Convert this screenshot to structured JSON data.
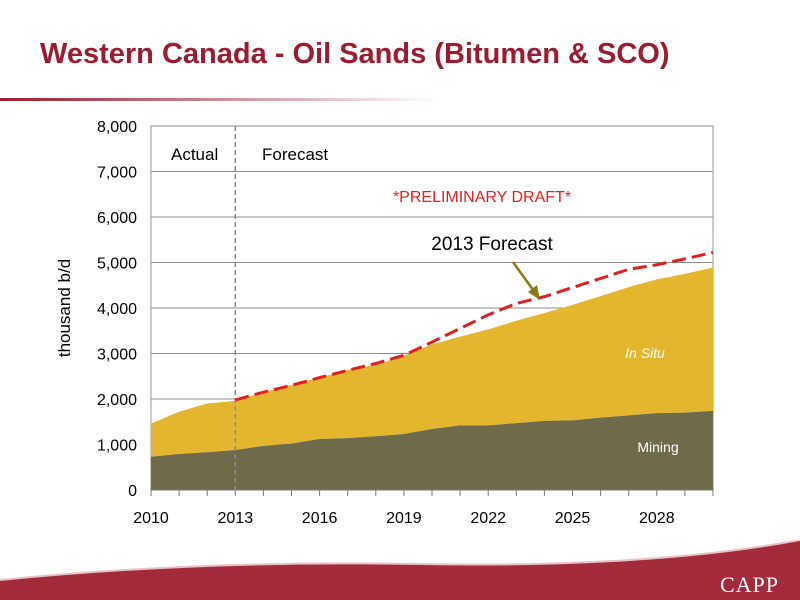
{
  "slide": {
    "title": "Western Canada - Oil Sands (Bitumen & SCO)",
    "logo": "CAPP"
  },
  "colors": {
    "title": "#9b1b30",
    "brand": "#9b1b30",
    "mining": "#6f6b4a",
    "in_situ": "#e3b62e",
    "forecast_line": "#e02020",
    "arrow": "#8a7a1a"
  },
  "chart_data": {
    "type": "area",
    "stacked": true,
    "x": [
      2010,
      2011,
      2012,
      2013,
      2014,
      2015,
      2016,
      2017,
      2018,
      2019,
      2020,
      2021,
      2022,
      2023,
      2024,
      2025,
      2026,
      2027,
      2028,
      2029,
      2030
    ],
    "x_ticks": [
      "2010",
      "2013",
      "2016",
      "2019",
      "2022",
      "2025",
      "2028"
    ],
    "y_ticks": [
      "0",
      "1,000",
      "2,000",
      "3,000",
      "4,000",
      "5,000",
      "6,000",
      "7,000",
      "8,000"
    ],
    "ylim": [
      0,
      8000
    ],
    "xlim": [
      2010,
      2030
    ],
    "ylabel": "thousand b/d",
    "series": [
      {
        "name": "Mining",
        "values": [
          730,
          790,
          830,
          880,
          970,
          1020,
          1120,
          1140,
          1180,
          1230,
          1340,
          1420,
          1420,
          1470,
          1520,
          1530,
          1590,
          1640,
          1690,
          1700,
          1740
        ]
      },
      {
        "name": "In Situ",
        "values": [
          730,
          930,
          1070,
          1080,
          1180,
          1290,
          1350,
          1500,
          1570,
          1720,
          1860,
          1950,
          2110,
          2250,
          2370,
          2540,
          2670,
          2820,
          2940,
          3050,
          3150
        ]
      }
    ],
    "forecast_line": {
      "name": "2013 Forecast",
      "x": [
        2013,
        2014,
        2015,
        2016,
        2017,
        2018,
        2019,
        2020,
        2021,
        2022,
        2023,
        2024,
        2025,
        2026,
        2027,
        2028,
        2029,
        2030
      ],
      "values": [
        1980,
        2150,
        2300,
        2470,
        2630,
        2780,
        2960,
        3250,
        3550,
        3850,
        4100,
        4250,
        4450,
        4650,
        4850,
        4950,
        5080,
        5220
      ]
    },
    "divider_x": 2013,
    "annotations": {
      "actual": "Actual",
      "forecast": "Forecast",
      "draft": "*PRELIMINARY DRAFT*",
      "callout": "2013 Forecast",
      "in_situ_label": "In Situ",
      "mining_label": "Mining"
    },
    "grid": "horizontal"
  }
}
